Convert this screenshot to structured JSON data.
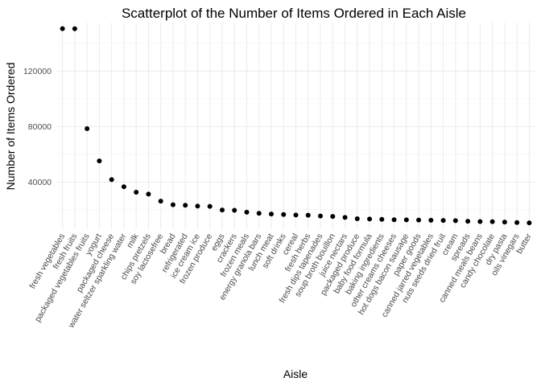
{
  "chart_data": {
    "type": "scatter",
    "title": "Scatterplot of the Number of Items Ordered in Each Aisle",
    "xlabel": "Aisle",
    "ylabel": "Number of Items Ordered",
    "ylim": [
      6000,
      155000
    ],
    "yticks": [
      40000,
      80000,
      120000
    ],
    "ytick_labels": [
      "40000",
      "80000",
      "120000"
    ],
    "grid": true,
    "point_color": "#000000",
    "categories": [
      "fresh vegetables",
      "fresh fruits",
      "packaged vegetables fruits",
      "yogurt",
      "packaged cheese",
      "water seltzer sparkling water",
      "milk",
      "chips pretzels",
      "soy lactosefree",
      "bread",
      "refrigerated",
      "ice cream ice",
      "frozen produce",
      "eggs",
      "crackers",
      "frozen meals",
      "energy granola bars",
      "lunch meat",
      "soft drinks",
      "cereal",
      "fresh herbs",
      "fresh dips tapenades",
      "soup broth bouillon",
      "juice nectars",
      "packaged produce",
      "baby food formula",
      "baking ingredients",
      "other creams cheeses",
      "hot dogs bacon sausage",
      "paper goods",
      "canned jarred vegetables",
      "nuts seeds dried fruit",
      "cream",
      "spreads",
      "canned meals beans",
      "candy chocolate",
      "dry pasta",
      "oils vinegars",
      "butter"
    ],
    "values": [
      150609,
      150473,
      78493,
      55240,
      41699,
      36617,
      32644,
      31269,
      26240,
      23635,
      23228,
      22676,
      22453,
      19875,
      19592,
      18221,
      17449,
      16957,
      16578,
      16201,
      16052,
      15488,
      15177,
      14486,
      13521,
      13304,
      13088,
      12820,
      12773,
      12577,
      12419,
      12313,
      12126,
      11695,
      11513,
      11453,
      11150,
      10752,
      10575
    ]
  }
}
